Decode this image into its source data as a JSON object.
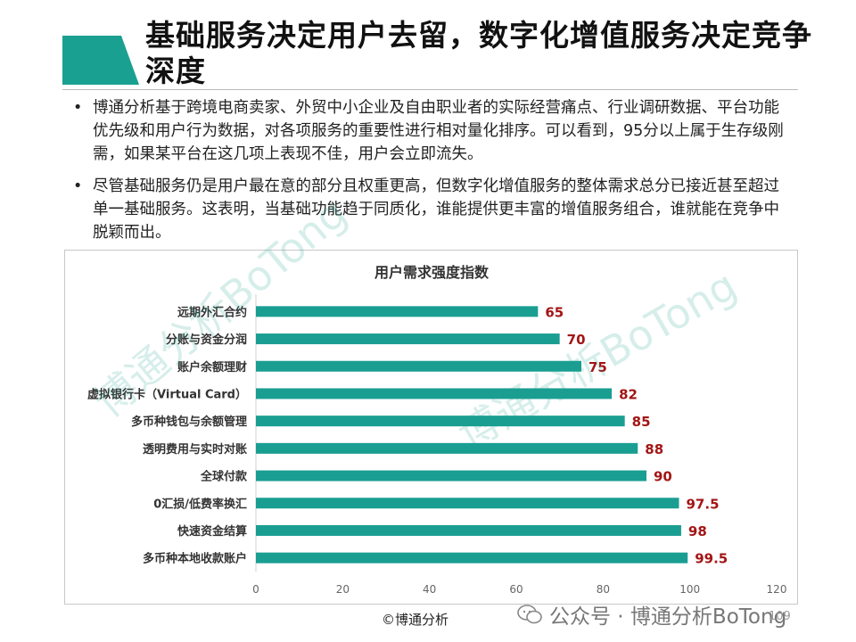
{
  "slide": {
    "title": "基础服务决定用户去留，数字化增值服务决定竞争深度",
    "bullets": [
      "博通分析基于跨境电商卖家、外贸中小企业及自由职业者的实际经营痛点、行业调研数据、平台功能优先级和用户行为数据，对各项服务的重要性进行相对量化排序。可以看到，95分以上属于生存级刚需，如果某平台在这几项上表现不佳，用户会立即流失。",
      "尽管基础服务仍是用户最在意的部分且权重更高，但数字化增值服务的整体需求总分已接近甚至超过单一基础服务。这表明，当基础功能趋于同质化，谁能提供更丰富的增值服务组合，谁就能在竞争中脱颖而出。"
    ],
    "bullet_symbol": "•",
    "accent_color": "#1aa090"
  },
  "chart_data": {
    "type": "bar",
    "orientation": "horizontal",
    "title": "用户需求强度指数",
    "categories": [
      "远期外汇合约",
      "分账与资金分润",
      "账户余额理财",
      "虚拟银行卡（Virtual Card）",
      "多币种钱包与余额管理",
      "透明费用与实时对账",
      "全球付款",
      "0汇损/低费率换汇",
      "快速资金结算",
      "多币种本地收款账户"
    ],
    "values": [
      65,
      70,
      75,
      82,
      85,
      88,
      90,
      97.5,
      98,
      99.5
    ],
    "value_labels": [
      "65",
      "70",
      "75",
      "82",
      "85",
      "88",
      "90",
      "97.5",
      "98",
      "99.5"
    ],
    "xlim": [
      0,
      120
    ],
    "xticks": [
      "0",
      "20",
      "40",
      "60",
      "80",
      "100",
      "120"
    ],
    "bar_color": "#1a9e92",
    "label_color": "#a31515",
    "grid": false,
    "legend": "none"
  },
  "watermarks": [
    "博通分析BoTong",
    "博通分析BoTong"
  ],
  "footer": {
    "copyright": "©博通分析",
    "wechat": "公众号 · 博通分析BoTong",
    "page": "109"
  }
}
